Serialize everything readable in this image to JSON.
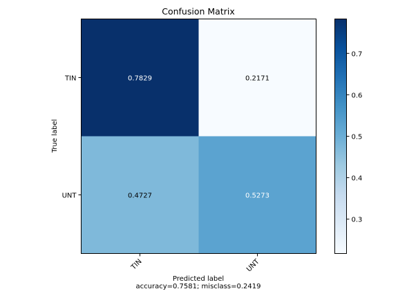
{
  "chart_data": {
    "type": "heatmap",
    "title": "Confusion Matrix",
    "xlabel": "Predicted label",
    "ylabel": "True label",
    "subtitle": "accuracy=0.7581; misclass=0.2419",
    "row_labels": [
      "TIN",
      "UNT"
    ],
    "col_labels": [
      "TIN",
      "UNT"
    ],
    "values": [
      [
        0.7829,
        0.2171
      ],
      [
        0.4727,
        0.5273
      ]
    ],
    "cell_text": [
      [
        "0.7829",
        "0.2171"
      ],
      [
        "0.4727",
        "0.5273"
      ]
    ],
    "colorbar": {
      "range": [
        0.2171,
        0.7829
      ],
      "ticks": [
        0.3,
        0.4,
        0.5,
        0.6,
        0.7
      ],
      "tick_labels": [
        "0.3",
        "0.4",
        "0.5",
        "0.6",
        "0.7"
      ]
    },
    "colormap": "Blues",
    "colors": {
      "low": "#f7fbff",
      "high": "#08306b"
    }
  }
}
